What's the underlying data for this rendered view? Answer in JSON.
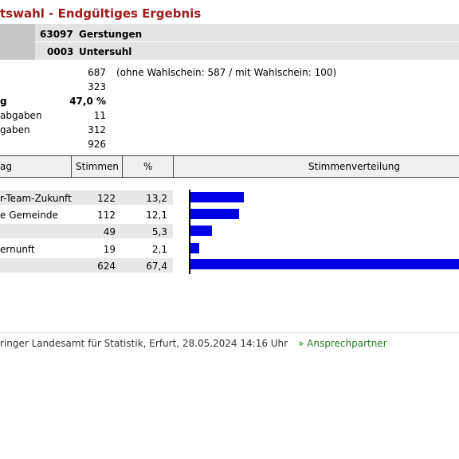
{
  "title": "tswahl - Endgültiges Ergebnis",
  "header": {
    "district_code": "63097",
    "district_name": "Gerstungen",
    "local_code": "0003",
    "local_name": "Untersuhl"
  },
  "stats": [
    {
      "label": "",
      "value": "687",
      "note": "(ohne Wahlschein: 587 / mit Wahlschein: 100)"
    },
    {
      "label": "",
      "value": "323"
    },
    {
      "label": "g",
      "value": "47,0 %",
      "bold": true
    },
    {
      "label": "abgaben",
      "value": "11"
    },
    {
      "label": "gaben",
      "value": "312"
    },
    {
      "label": "",
      "value": "926"
    }
  ],
  "table": {
    "headers": {
      "name": "ag",
      "votes": "Stimmen",
      "percent": "%",
      "distribution": "Stimmenverteilung"
    },
    "rows": [
      {
        "name": "r-Team-Zukunft",
        "votes": "122",
        "percent": "13,2",
        "shaded": true
      },
      {
        "name": "e Gemeinde",
        "votes": "112",
        "percent": "12,1",
        "shaded": false
      },
      {
        "name": "",
        "votes": "49",
        "percent": "5,3",
        "shaded": true
      },
      {
        "name": "ernunft",
        "votes": "19",
        "percent": "2,1",
        "shaded": false
      },
      {
        "name": "",
        "votes": "624",
        "percent": "67,4",
        "shaded": true
      }
    ]
  },
  "chart_data": {
    "type": "bar",
    "categories": [
      "r-Team-Zukunft",
      "e Gemeinde",
      "",
      "ernunft",
      ""
    ],
    "values": [
      13.2,
      12.1,
      5.3,
      2.1,
      67.4
    ],
    "bar_color": "#0000e6"
  },
  "footer": {
    "source": "ringer Landesamt für Statistik, Erfurt, 28.05.2024 14:16 Uhr",
    "contact_link": "» Ansprechpartner"
  },
  "colors": {
    "title": "#a01c1c",
    "header_bg": "#e3e3e3",
    "row_shade": "#e8e8e8",
    "link": "#2a7a2a"
  }
}
